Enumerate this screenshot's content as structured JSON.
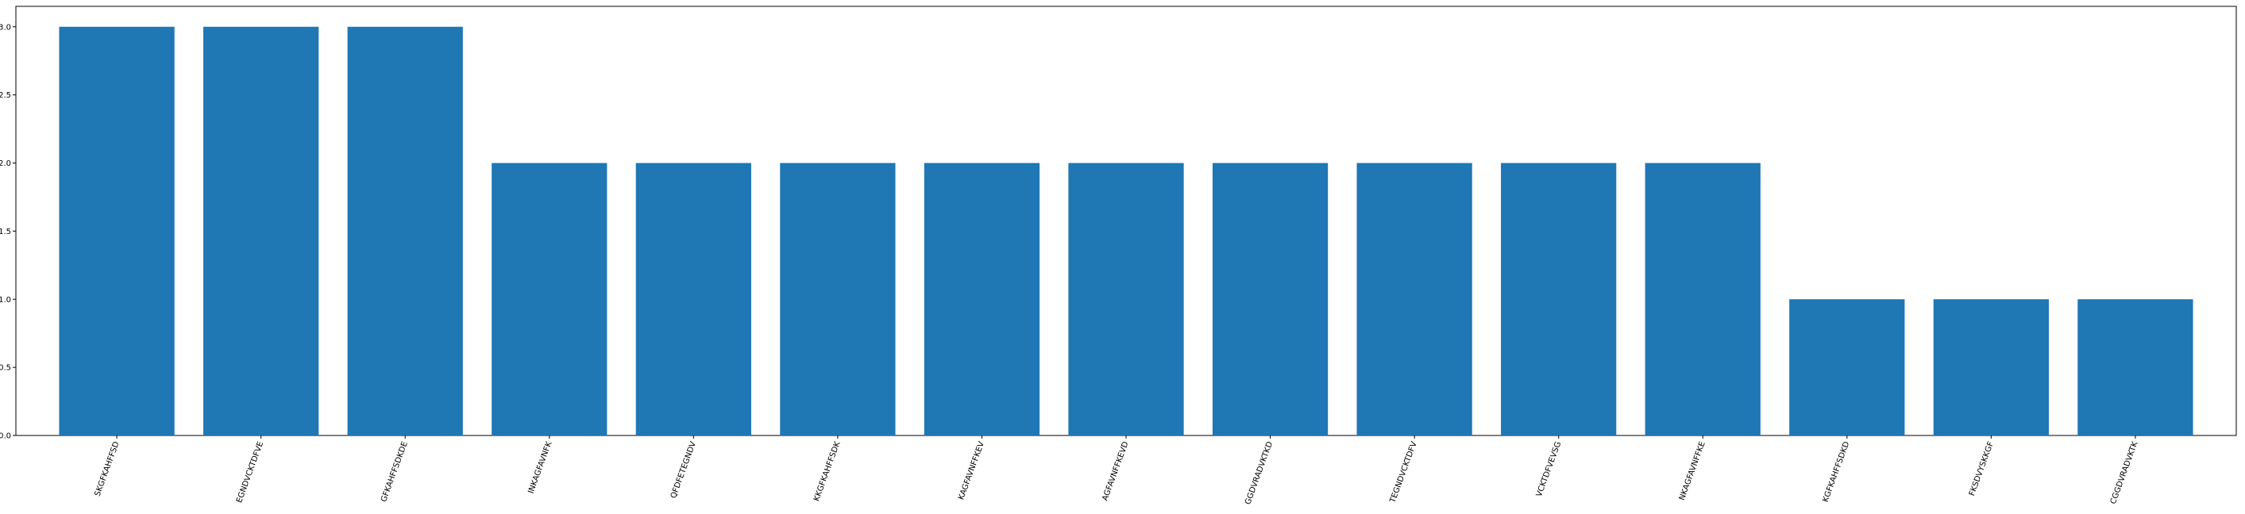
{
  "chart_data": {
    "type": "bar",
    "categories": [
      "SKGFKAHFFSD",
      "EGNDVCKTDFVE",
      "GFKAHFFSDKDE",
      "INKAGFAVNFK",
      "QFDFETEGNDV",
      "KKGFKAHFFSDK",
      "KAGFAVNFFKEV",
      "AGFAVNFFKEVD",
      "GGDVRADVKTKD",
      "TEGNDVCKTDFV",
      "VCKTDFVEVSG",
      "NKAGFAVNFFKE",
      "KGFKAHFFSDKD",
      "FKSDVYSKKGF",
      "CGGDVRADVKTK"
    ],
    "values": [
      3,
      3,
      3,
      2,
      2,
      2,
      2,
      2,
      2,
      2,
      2,
      2,
      1,
      1,
      1
    ],
    "ylim": [
      0,
      3.15
    ],
    "yticks": [
      0.0,
      0.5,
      1.0,
      1.5,
      2.0,
      2.5,
      3.0
    ],
    "ytick_labels": [
      "0.0",
      "0.5",
      "1.0",
      "1.5",
      "2.0",
      "2.5",
      "3.0"
    ],
    "title": "",
    "xlabel": "",
    "ylabel": "",
    "grid": false,
    "bar_color": "#1f77b4"
  }
}
